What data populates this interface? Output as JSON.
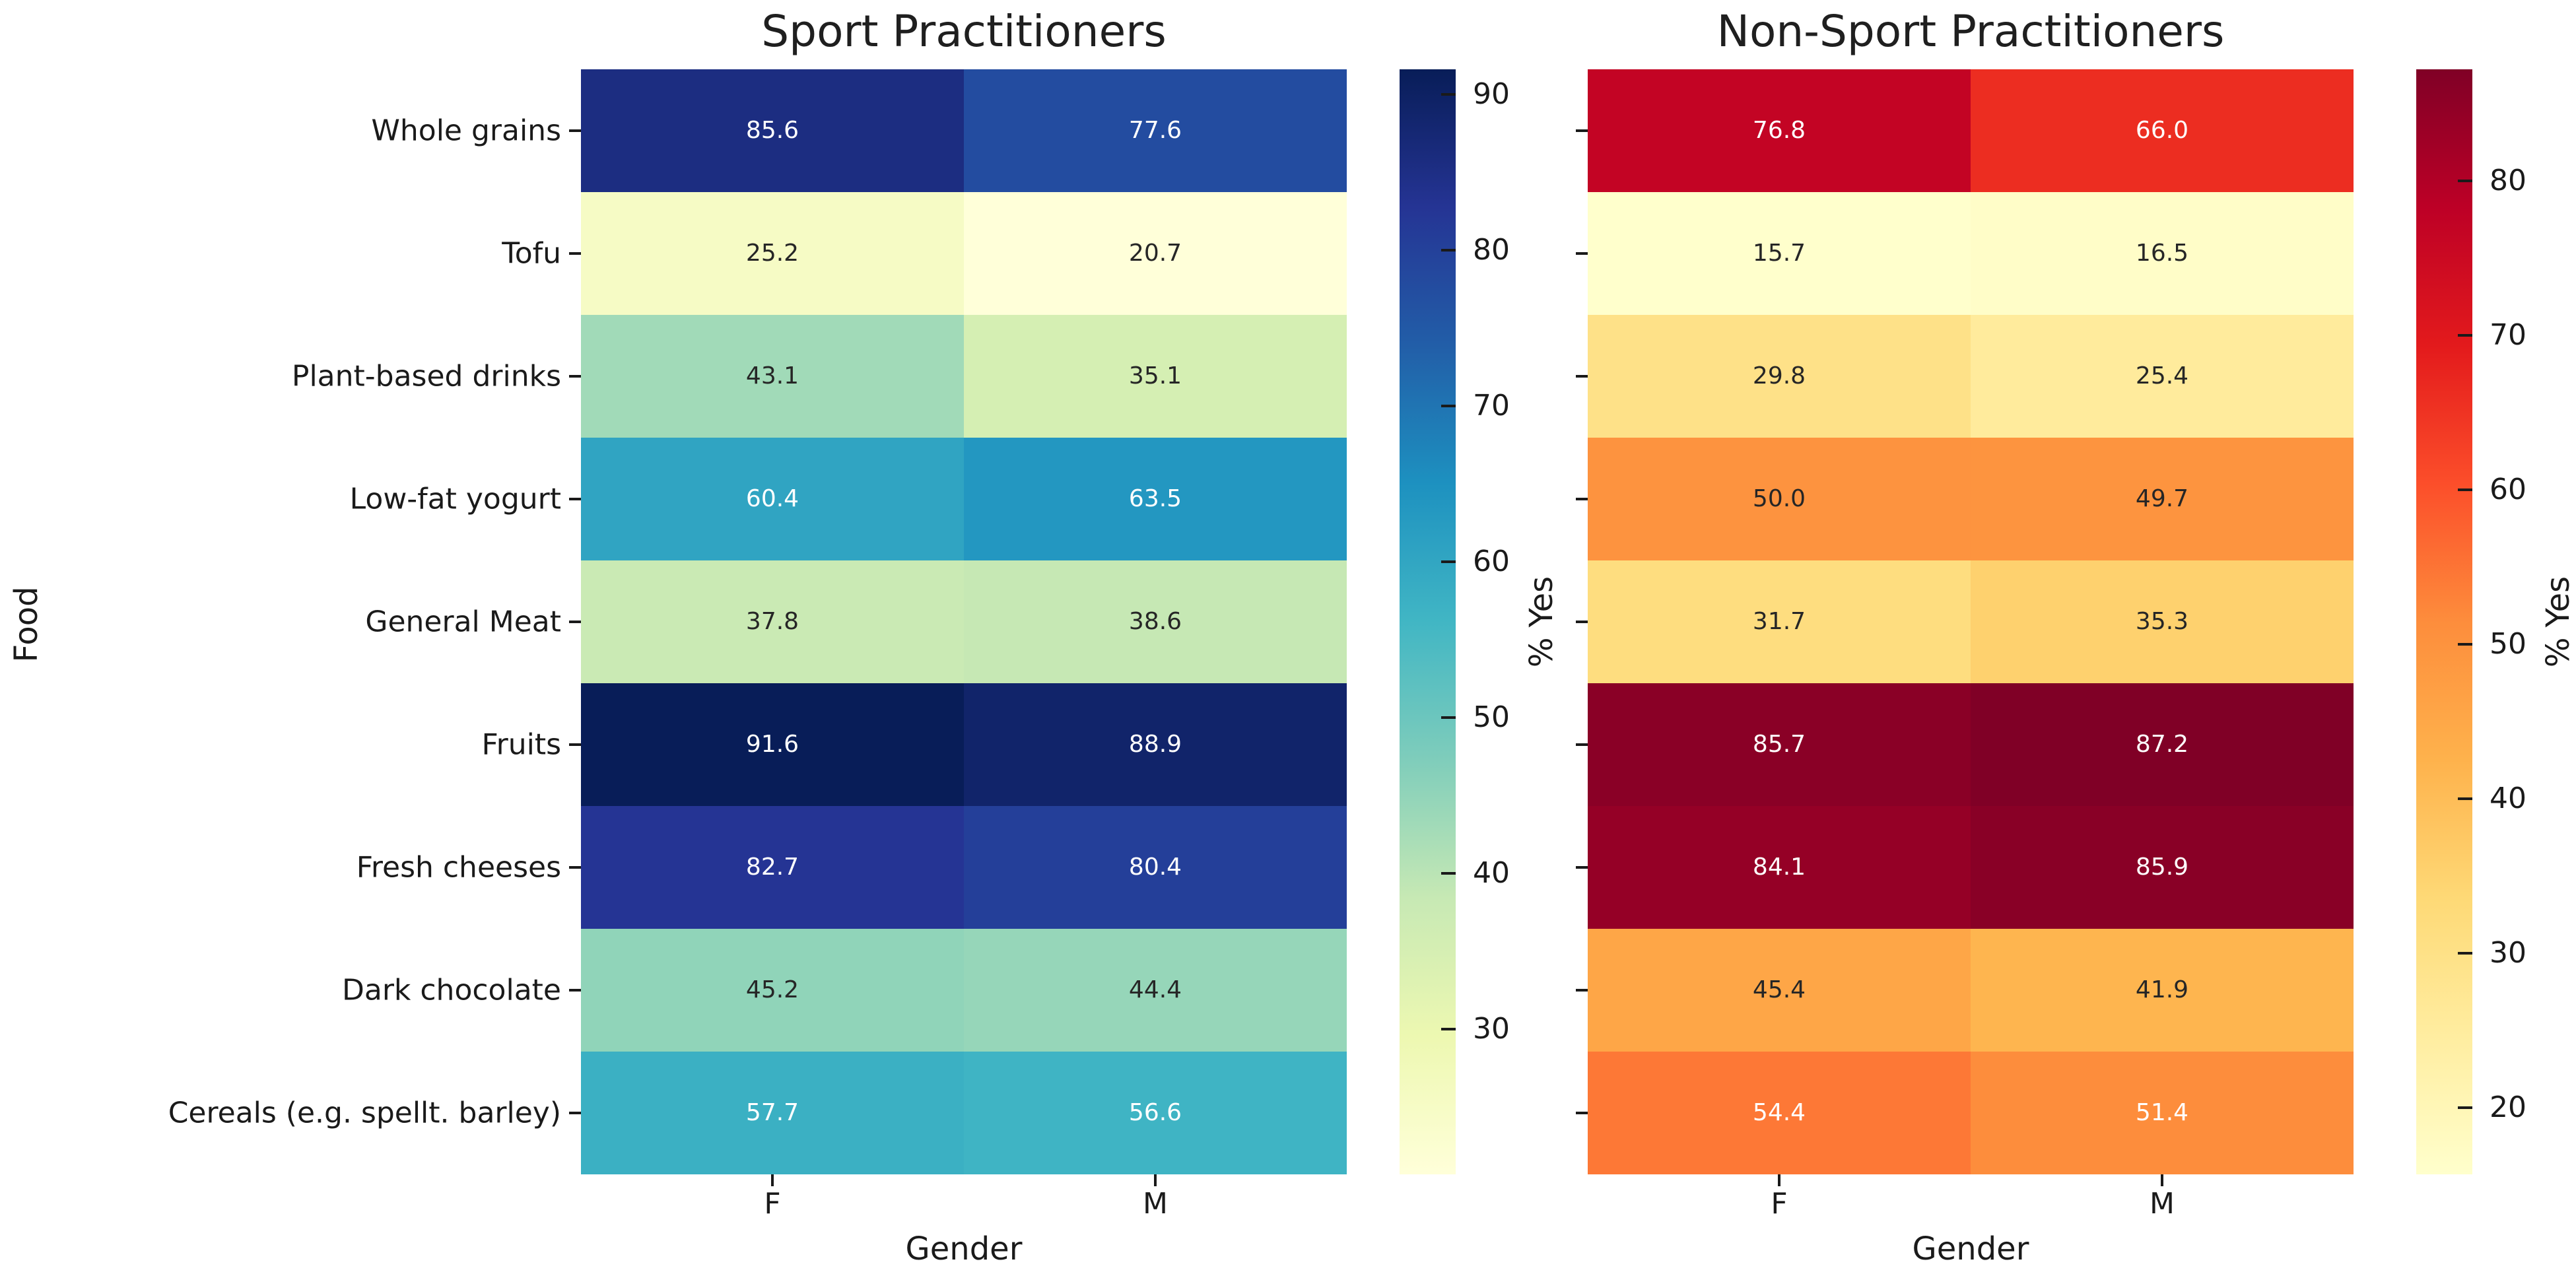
{
  "chart_data": {
    "type": "heatmap",
    "shared": {
      "ylabel": "Food",
      "xlabel": "Gender",
      "columns": [
        "F",
        "M"
      ],
      "rows": [
        "Whole grains",
        "Tofu",
        "Plant-based drinks",
        "Low-fat yogurt",
        "General Meat",
        "Fruits",
        "Fresh cheeses",
        "Dark chocolate",
        "Cereals (e.g. spellt. barley)"
      ],
      "colorbar_label": "% Yes",
      "annotations_shown": true,
      "grid": false,
      "legend_position": "colorbar-right"
    },
    "panels": [
      {
        "title": "Sport Practitioners",
        "colormap": "YlGnBu",
        "vmin": 20.7,
        "vmax": 91.6,
        "colorbar_ticks": [
          30,
          40,
          50,
          60,
          70,
          80,
          90
        ],
        "values": [
          [
            85.6,
            77.6
          ],
          [
            25.2,
            20.7
          ],
          [
            43.1,
            35.1
          ],
          [
            60.4,
            63.5
          ],
          [
            37.8,
            38.6
          ],
          [
            91.6,
            88.9
          ],
          [
            82.7,
            80.4
          ],
          [
            45.2,
            44.4
          ],
          [
            57.7,
            56.6
          ]
        ]
      },
      {
        "title": "Non-Sport Practitioners",
        "colormap": "YlOrRd",
        "vmin": 15.7,
        "vmax": 87.2,
        "colorbar_ticks": [
          20,
          30,
          40,
          50,
          60,
          70,
          80
        ],
        "values": [
          [
            76.8,
            66.0
          ],
          [
            15.7,
            16.5
          ],
          [
            29.8,
            25.4
          ],
          [
            50.0,
            49.7
          ],
          [
            31.7,
            35.3
          ],
          [
            85.7,
            87.2
          ],
          [
            84.1,
            85.9
          ],
          [
            45.4,
            41.9
          ],
          [
            54.4,
            51.4
          ]
        ]
      }
    ],
    "colormaps": {
      "YlGnBu": [
        "#ffffd9",
        "#edf8b1",
        "#c7e9b4",
        "#7fcdbb",
        "#41b6c4",
        "#1d91c0",
        "#225ea8",
        "#253494",
        "#081d58"
      ],
      "YlOrRd": [
        "#ffffcc",
        "#ffeda0",
        "#fed976",
        "#feb24c",
        "#fd8d3c",
        "#fc4e2a",
        "#e31a1c",
        "#bd0026",
        "#800026"
      ]
    },
    "text_colors": {
      "dark": "#262626",
      "light": "#ffffff",
      "axis": "#1a1a1a"
    },
    "background": "#ffffff"
  }
}
